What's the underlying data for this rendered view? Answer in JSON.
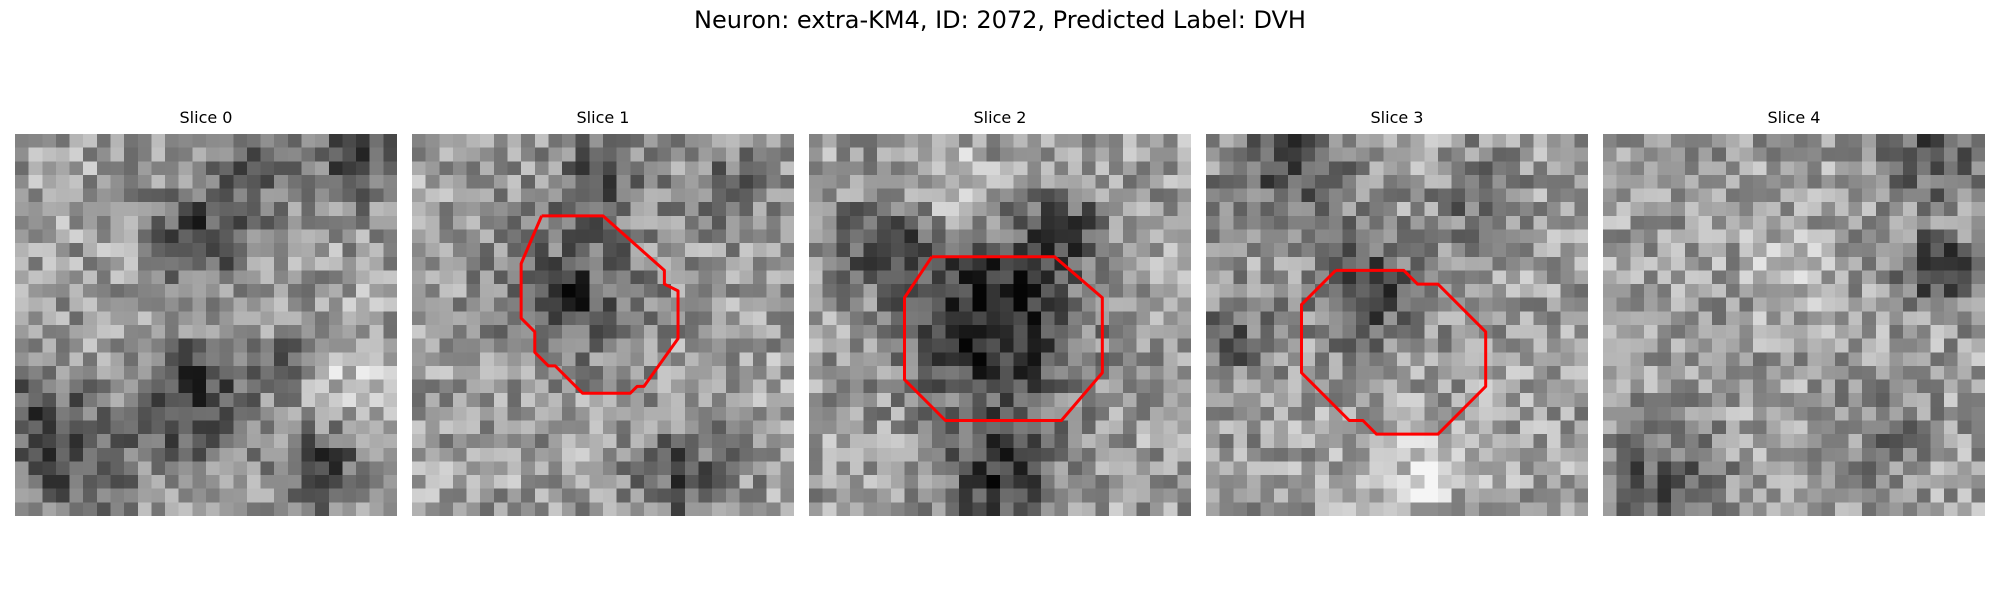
{
  "figure": {
    "title": "Neuron: extra-KM4, ID: 2072, Predicted Label: DVH",
    "contour_color": "#ff0000",
    "colormap": "gray",
    "grid_size": 28
  },
  "slices": [
    {
      "title": "Slice 0",
      "has_contour": false,
      "seed": 11,
      "blobs": [
        {
          "c": [
            14.0,
            7.5
          ],
          "r": 2.6,
          "s": -0.35
        },
        {
          "c": [
            23.5,
            16.5
          ],
          "r": 2.2,
          "s": 0.18
        },
        {
          "c": [
            13.0,
            19.5
          ],
          "r": 3.0,
          "s": -0.42
        },
        {
          "c": [
            20.5,
            16.5
          ],
          "r": 1.5,
          "s": -0.28
        },
        {
          "c": [
            25.0,
            2.0
          ],
          "r": 2.5,
          "s": -0.3
        },
        {
          "c": [
            22.5,
            24.5
          ],
          "r": 2.0,
          "s": -0.4
        },
        {
          "c": [
            5.0,
            25.0
          ],
          "r": 2.5,
          "s": -0.25
        },
        {
          "c": [
            1.5,
            21.0
          ],
          "r": 3.0,
          "s": -0.3
        },
        {
          "c": [
            17.0,
            2.5
          ],
          "r": 2.0,
          "s": -0.25
        }
      ],
      "contour": []
    },
    {
      "title": "Slice 1",
      "has_contour": true,
      "seed": 23,
      "blobs": [
        {
          "c": [
            12.0,
            11.5
          ],
          "r": 3.8,
          "s": -0.25
        },
        {
          "c": [
            11.5,
            12.0
          ],
          "r": 1.2,
          "s": -0.3
        },
        {
          "c": [
            14.0,
            3.0
          ],
          "r": 2.5,
          "s": -0.25
        },
        {
          "c": [
            20.0,
            25.0
          ],
          "r": 2.5,
          "s": -0.3
        },
        {
          "c": [
            23.5,
            4.0
          ],
          "r": 2.0,
          "s": -0.25
        }
      ],
      "contour": [
        [
          9.5,
          6.0
        ],
        [
          14.0,
          6.0
        ],
        [
          18.5,
          10.0
        ],
        [
          18.5,
          11.0
        ],
        [
          19.5,
          11.5
        ],
        [
          19.5,
          15.0
        ],
        [
          17.0,
          18.5
        ],
        [
          16.5,
          18.5
        ],
        [
          16.0,
          19.0
        ],
        [
          15.5,
          19.0
        ],
        [
          15.0,
          19.0
        ],
        [
          12.5,
          19.0
        ],
        [
          10.5,
          17.0
        ],
        [
          10.0,
          17.0
        ],
        [
          9.0,
          16.0
        ],
        [
          9.0,
          14.5
        ],
        [
          8.0,
          13.5
        ],
        [
          8.0,
          9.5
        ],
        [
          9.5,
          6.0
        ]
      ]
    },
    {
      "title": "Slice 2",
      "has_contour": true,
      "seed": 37,
      "blobs": [
        {
          "c": [
            13.5,
            13.5
          ],
          "r": 4.3,
          "s": -0.55
        },
        {
          "c": [
            14.0,
            25.0
          ],
          "r": 3.0,
          "s": -0.4
        },
        {
          "c": [
            5.5,
            8.0
          ],
          "r": 2.5,
          "s": -0.3
        },
        {
          "c": [
            19.0,
            7.0
          ],
          "r": 2.0,
          "s": -0.3
        },
        {
          "c": [
            10.5,
            4.0
          ],
          "r": 2.0,
          "s": 0.22
        }
      ],
      "contour": [
        [
          9.0,
          9.0
        ],
        [
          18.0,
          9.0
        ],
        [
          21.5,
          12.0
        ],
        [
          21.5,
          17.5
        ],
        [
          18.5,
          21.0
        ],
        [
          10.0,
          21.0
        ],
        [
          7.0,
          18.0
        ],
        [
          7.0,
          12.0
        ],
        [
          9.0,
          9.0
        ]
      ]
    },
    {
      "title": "Slice 3",
      "has_contour": true,
      "seed": 41,
      "blobs": [
        {
          "c": [
            12.0,
            11.5
          ],
          "r": 2.8,
          "s": -0.35
        },
        {
          "c": [
            15.5,
            25.0
          ],
          "r": 2.5,
          "s": 0.2
        },
        {
          "c": [
            6.0,
            2.0
          ],
          "r": 3.5,
          "s": -0.3
        },
        {
          "c": [
            20.0,
            5.0
          ],
          "r": 2.0,
          "s": -0.22
        },
        {
          "c": [
            2.0,
            15.0
          ],
          "r": 2.0,
          "s": -0.25
        }
      ],
      "contour": [
        [
          9.5,
          10.0
        ],
        [
          14.5,
          10.0
        ],
        [
          15.5,
          11.0
        ],
        [
          17.0,
          11.0
        ],
        [
          19.5,
          13.5
        ],
        [
          20.5,
          14.5
        ],
        [
          20.5,
          18.5
        ],
        [
          17.0,
          22.0
        ],
        [
          12.5,
          22.0
        ],
        [
          11.5,
          21.0
        ],
        [
          10.5,
          21.0
        ],
        [
          7.0,
          17.5
        ],
        [
          7.0,
          12.5
        ],
        [
          9.5,
          10.0
        ]
      ]
    },
    {
      "title": "Slice 4",
      "has_contour": false,
      "seed": 53,
      "blobs": [
        {
          "c": [
            24.5,
            10.0
          ],
          "r": 1.8,
          "s": -0.45
        },
        {
          "c": [
            4.0,
            26.0
          ],
          "r": 3.0,
          "s": -0.3
        },
        {
          "c": [
            24.0,
            1.5
          ],
          "r": 2.5,
          "s": -0.3
        },
        {
          "c": [
            21.0,
            22.0
          ],
          "r": 2.0,
          "s": -0.2
        },
        {
          "c": [
            14.0,
            10.0
          ],
          "r": 2.0,
          "s": 0.18
        }
      ],
      "contour": []
    }
  ]
}
